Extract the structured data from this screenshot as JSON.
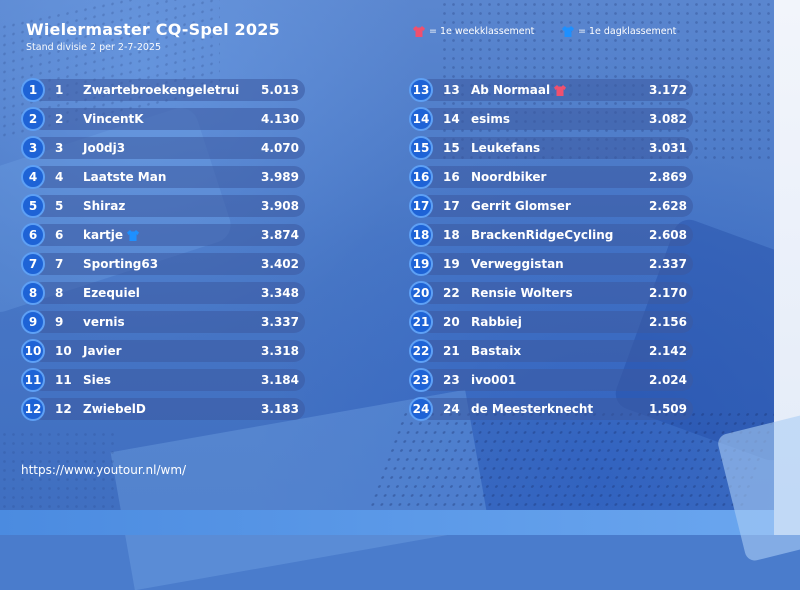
{
  "header": {
    "title": "Wielermaster CQ-Spel 2025",
    "subtitle": "Stand divisie 2 per 2-7-2025"
  },
  "legend": {
    "week_label": "= 1e weekklassement",
    "day_label": "= 1e dagklassement",
    "week_color": "#f0506e",
    "day_color": "#1e90ff"
  },
  "left_rows": [
    {
      "pos": "1",
      "rank": "1",
      "name": "Zwartebroekengeletrui",
      "score": "5.013",
      "badge": ""
    },
    {
      "pos": "2",
      "rank": "2",
      "name": "VincentK",
      "score": "4.130",
      "badge": ""
    },
    {
      "pos": "3",
      "rank": "3",
      "name": "Jo0dj3",
      "score": "4.070",
      "badge": ""
    },
    {
      "pos": "4",
      "rank": "4",
      "name": "Laatste Man",
      "score": "3.989",
      "badge": ""
    },
    {
      "pos": "5",
      "rank": "5",
      "name": "Shiraz",
      "score": "3.908",
      "badge": ""
    },
    {
      "pos": "6",
      "rank": "6",
      "name": "kartje",
      "score": "3.874",
      "badge": "day"
    },
    {
      "pos": "7",
      "rank": "7",
      "name": "Sporting63",
      "score": "3.402",
      "badge": ""
    },
    {
      "pos": "8",
      "rank": "8",
      "name": "Ezequiel",
      "score": "3.348",
      "badge": ""
    },
    {
      "pos": "9",
      "rank": "9",
      "name": "vernis",
      "score": "3.337",
      "badge": ""
    },
    {
      "pos": "10",
      "rank": "10",
      "name": "Javier",
      "score": "3.318",
      "badge": ""
    },
    {
      "pos": "11",
      "rank": "11",
      "name": "Sies",
      "score": "3.184",
      "badge": ""
    },
    {
      "pos": "12",
      "rank": "12",
      "name": "ZwiebelD",
      "score": "3.183",
      "badge": ""
    }
  ],
  "right_rows": [
    {
      "pos": "13",
      "rank": "13",
      "name": "Ab Normaal",
      "score": "3.172",
      "badge": "week"
    },
    {
      "pos": "14",
      "rank": "14",
      "name": "esims",
      "score": "3.082",
      "badge": ""
    },
    {
      "pos": "15",
      "rank": "15",
      "name": "Leukefans",
      "score": "3.031",
      "badge": ""
    },
    {
      "pos": "16",
      "rank": "16",
      "name": "Noordbiker",
      "score": "2.869",
      "badge": ""
    },
    {
      "pos": "17",
      "rank": "17",
      "name": "Gerrit Glomser",
      "score": "2.628",
      "badge": ""
    },
    {
      "pos": "18",
      "rank": "18",
      "name": "BrackenRidgeCycling",
      "score": "2.608",
      "badge": ""
    },
    {
      "pos": "19",
      "rank": "19",
      "name": "Verweggistan",
      "score": "2.337",
      "badge": ""
    },
    {
      "pos": "20",
      "rank": "22",
      "name": "Rensie Wolters",
      "score": "2.170",
      "badge": ""
    },
    {
      "pos": "21",
      "rank": "20",
      "name": "Rabbiej",
      "score": "2.156",
      "badge": ""
    },
    {
      "pos": "22",
      "rank": "21",
      "name": "Bastaix",
      "score": "2.142",
      "badge": ""
    },
    {
      "pos": "23",
      "rank": "23",
      "name": "ivo001",
      "score": "2.024",
      "badge": ""
    },
    {
      "pos": "24",
      "rank": "24",
      "name": "de Meesterknecht",
      "score": "1.509",
      "badge": ""
    }
  ],
  "footer": {
    "url": "https://www.youtour.nl/wm/"
  }
}
